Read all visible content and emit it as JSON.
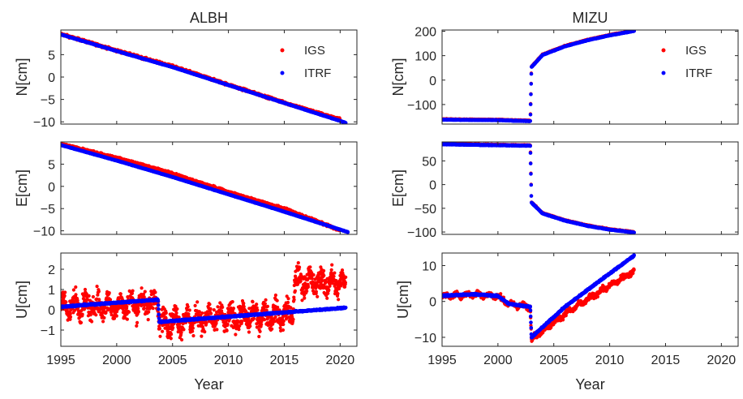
{
  "figure": {
    "colors": {
      "IGS": "#ff0000",
      "ITRF": "#0000ff",
      "axis": "#262626"
    },
    "series_names": [
      "IGS",
      "ITRF"
    ]
  },
  "chart_data": [
    {
      "type": "scatter",
      "panel": "ALBH-N",
      "title": "ALBH",
      "xlabel": "",
      "ylabel": "N[cm]",
      "xlim": [
        1995,
        2021.5
      ],
      "ylim": [
        -10.5,
        10.5
      ],
      "xticks": [
        1995,
        2000,
        2005,
        2010,
        2015,
        2020
      ],
      "show_xticklabels": false,
      "yticks": [
        -10,
        -5,
        0,
        5
      ],
      "legend": {
        "position": "top-right",
        "entries": [
          "IGS",
          "ITRF"
        ]
      },
      "series": [
        {
          "name": "IGS",
          "x": [
            1995.0,
            2000.0,
            2005.0,
            2010.0,
            2015.0,
            2020.0
          ],
          "y": [
            9.6,
            5.9,
            2.4,
            -1.7,
            -5.7,
            -9.5
          ],
          "noise": 0.25
        },
        {
          "name": "ITRF",
          "x": [
            1995.0,
            2000.0,
            2005.0,
            2010.0,
            2015.0,
            2020.5
          ],
          "y": [
            9.5,
            5.8,
            2.2,
            -1.8,
            -5.8,
            -10.2
          ],
          "noise": 0.05
        }
      ]
    },
    {
      "type": "scatter",
      "panel": "MIZU-N",
      "title": "MIZU",
      "xlabel": "",
      "ylabel": "N[cm]",
      "xlim": [
        1995,
        2021.5
      ],
      "ylim": [
        -180,
        205
      ],
      "xticks": [
        1995,
        2000,
        2005,
        2010,
        2015,
        2020
      ],
      "show_xticklabels": false,
      "yticks": [
        -100,
        0,
        100,
        200
      ],
      "legend": {
        "position": "top-right",
        "entries": [
          "IGS",
          "ITRF"
        ]
      },
      "series": [
        {
          "name": "IGS",
          "x": [
            1995.0,
            2000.0,
            2002.9,
            2003.0,
            2004.0,
            2006.0,
            2008.0,
            2010.0,
            2012.2
          ],
          "y": [
            -160,
            -162,
            -166,
            55,
            105,
            140,
            165,
            185,
            203
          ],
          "noise": 1.5
        },
        {
          "name": "ITRF",
          "x": [
            1995.0,
            2000.0,
            2002.9,
            2003.0,
            2004.0,
            2006.0,
            2008.0,
            2010.0,
            2012.2
          ],
          "y": [
            -162,
            -164,
            -168,
            53,
            103,
            138,
            163,
            183,
            201
          ],
          "noise": 1.0
        }
      ]
    },
    {
      "type": "scatter",
      "panel": "ALBH-E",
      "title": "",
      "xlabel": "",
      "ylabel": "E[cm]",
      "xlim": [
        1995,
        2021.5
      ],
      "ylim": [
        -10.8,
        10.0
      ],
      "xticks": [
        1995,
        2000,
        2005,
        2010,
        2015,
        2020
      ],
      "show_xticklabels": false,
      "yticks": [
        -10,
        -5,
        0,
        5
      ],
      "series": [
        {
          "name": "IGS",
          "x": [
            1995.0,
            2000.0,
            2005.0,
            2010.0,
            2015.0,
            2020.0
          ],
          "y": [
            9.5,
            6.4,
            2.9,
            -1.3,
            -5.0,
            -9.9
          ],
          "noise": 0.25
        },
        {
          "name": "ITRF",
          "x": [
            1995.0,
            2000.0,
            2005.0,
            2010.0,
            2015.0,
            2020.7
          ],
          "y": [
            9.3,
            5.8,
            2.1,
            -1.8,
            -5.7,
            -10.3
          ],
          "noise": 0.05
        }
      ]
    },
    {
      "type": "scatter",
      "panel": "MIZU-E",
      "title": "",
      "xlabel": "",
      "ylabel": "E[cm]",
      "xlim": [
        1995,
        2021.5
      ],
      "ylim": [
        -105,
        90
      ],
      "xticks": [
        1995,
        2000,
        2005,
        2010,
        2015,
        2020
      ],
      "show_xticklabels": false,
      "yticks": [
        -100,
        -50,
        0,
        50
      ],
      "series": [
        {
          "name": "IGS",
          "x": [
            1995.0,
            2000.0,
            2002.9,
            2003.0,
            2004.0,
            2006.0,
            2008.0,
            2010.0,
            2012.2
          ],
          "y": [
            86,
            84,
            83,
            -37,
            -60,
            -75,
            -86,
            -94,
            -100
          ],
          "noise": 1.0
        },
        {
          "name": "ITRF",
          "x": [
            1995.0,
            2000.0,
            2002.9,
            2003.0,
            2004.0,
            2006.0,
            2008.0,
            2010.0,
            2012.2
          ],
          "y": [
            85,
            83,
            82,
            -38,
            -61,
            -76,
            -87,
            -95,
            -101
          ],
          "noise": 0.6
        }
      ]
    },
    {
      "type": "scatter",
      "panel": "ALBH-U",
      "title": "",
      "xlabel": "Year",
      "ylabel": "U[cm]",
      "xlim": [
        1995,
        2021.5
      ],
      "ylim": [
        -1.8,
        2.8
      ],
      "xticks": [
        1995,
        2000,
        2005,
        2010,
        2015,
        2020
      ],
      "show_xticklabels": true,
      "yticks": [
        -1,
        0,
        1,
        2
      ],
      "series": [
        {
          "name": "IGS",
          "x": [
            1995.0,
            2000.0,
            2003.7,
            2003.8,
            2010.0,
            2015.8,
            2015.9,
            2020.5
          ],
          "y": [
            0.2,
            0.2,
            0.4,
            -0.6,
            -0.4,
            -0.2,
            1.4,
            1.3
          ],
          "noise": 0.55
        },
        {
          "name": "ITRF",
          "x": [
            1995.0,
            2003.7,
            2003.8,
            2020.5
          ],
          "y": [
            0.15,
            0.5,
            -0.6,
            0.1
          ],
          "noise": 0.03
        }
      ]
    },
    {
      "type": "scatter",
      "panel": "MIZU-U",
      "title": "",
      "xlabel": "Year",
      "ylabel": "U[cm]",
      "xlim": [
        1995,
        2021.5
      ],
      "ylim": [
        -12.5,
        13.5
      ],
      "xticks": [
        1995,
        2000,
        2005,
        2010,
        2015,
        2020
      ],
      "show_xticklabels": true,
      "yticks": [
        -10,
        0,
        10
      ],
      "series": [
        {
          "name": "IGS",
          "x": [
            1995.0,
            1998.0,
            2000.0,
            2001.0,
            2002.9,
            2003.0,
            2006.0,
            2009.0,
            2012.2
          ],
          "y": [
            1.5,
            2.0,
            1.5,
            -0.8,
            -1.5,
            -10.5,
            -3.5,
            2.5,
            8.5
          ],
          "noise": 0.7
        },
        {
          "name": "ITRF",
          "x": [
            1995.0,
            1998.0,
            2000.0,
            2001.0,
            2002.9,
            2003.0,
            2006.0,
            2009.0,
            2012.2
          ],
          "y": [
            1.6,
            2.0,
            1.5,
            -0.7,
            -1.5,
            -10.0,
            -1.5,
            5.5,
            12.8
          ],
          "noise": 0.2
        }
      ]
    }
  ]
}
